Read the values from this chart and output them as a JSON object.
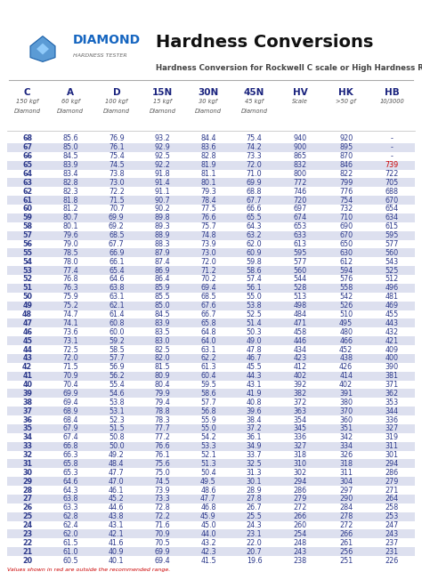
{
  "title": "Hardness Conversions",
  "subtitle": "Hardness Conversion for Rockwell C scale or High Hardness Range",
  "logo_text": "DIAMOND",
  "logo_subtext": "HARDNESS TESTER",
  "col_headers": [
    "C",
    "A",
    "D",
    "15N",
    "30N",
    "45N",
    "HV",
    "HK",
    "HB"
  ],
  "col_subheaders_line1": [
    "150 kgf",
    "60 kgf",
    "100 kgf",
    "15 kgf",
    "30 kgf",
    "45 kgf",
    "Scale",
    ">50 gf",
    "10/3000"
  ],
  "col_subheaders_line2": [
    "Diamond",
    "Diamond",
    "Diamond",
    "Diamond",
    "Diamond",
    "Diamond",
    "",
    "",
    ""
  ],
  "red_hb_threshold": 739,
  "data": [
    [
      68,
      85.6,
      76.9,
      93.2,
      84.4,
      75.4,
      940,
      920,
      "-"
    ],
    [
      67,
      85.0,
      76.1,
      92.9,
      83.6,
      74.2,
      900,
      895,
      "-"
    ],
    [
      66,
      84.5,
      75.4,
      92.5,
      82.8,
      73.3,
      865,
      870,
      "-"
    ],
    [
      65,
      83.9,
      74.5,
      92.2,
      81.9,
      72.0,
      832,
      846,
      "739"
    ],
    [
      64,
      83.4,
      73.8,
      91.8,
      81.1,
      71.0,
      800,
      822,
      "722"
    ],
    [
      63,
      82.8,
      73.0,
      91.4,
      80.1,
      69.9,
      772,
      799,
      "705"
    ],
    [
      62,
      82.3,
      72.2,
      91.1,
      79.3,
      68.8,
      746,
      776,
      "688"
    ],
    [
      61,
      81.8,
      71.5,
      90.7,
      78.4,
      67.7,
      720,
      754,
      "670"
    ],
    [
      60,
      81.2,
      70.7,
      90.2,
      77.5,
      66.6,
      697,
      732,
      "654"
    ],
    [
      59,
      80.7,
      69.9,
      89.8,
      76.6,
      65.5,
      674,
      710,
      "634"
    ],
    [
      58,
      80.1,
      69.2,
      89.3,
      75.7,
      64.3,
      653,
      690,
      "615"
    ],
    [
      57,
      79.6,
      68.5,
      88.9,
      74.8,
      63.2,
      633,
      670,
      "595"
    ],
    [
      56,
      79.0,
      67.7,
      88.3,
      73.9,
      62.0,
      613,
      650,
      "577"
    ],
    [
      55,
      78.5,
      66.9,
      87.9,
      73.0,
      60.9,
      595,
      630,
      "560"
    ],
    [
      54,
      78.0,
      66.1,
      87.4,
      72.0,
      59.8,
      577,
      612,
      "543"
    ],
    [
      53,
      77.4,
      65.4,
      86.9,
      71.2,
      58.6,
      560,
      594,
      "525"
    ],
    [
      52,
      76.8,
      64.6,
      86.4,
      70.2,
      57.4,
      544,
      576,
      "512"
    ],
    [
      51,
      76.3,
      63.8,
      85.9,
      69.4,
      56.1,
      528,
      558,
      "496"
    ],
    [
      50,
      75.9,
      63.1,
      85.5,
      68.5,
      55.0,
      513,
      542,
      "481"
    ],
    [
      49,
      75.2,
      62.1,
      85.0,
      67.6,
      53.8,
      498,
      526,
      "469"
    ],
    [
      48,
      74.7,
      61.4,
      84.5,
      66.7,
      52.5,
      484,
      510,
      "455"
    ],
    [
      47,
      74.1,
      60.8,
      83.9,
      65.8,
      51.4,
      471,
      495,
      "443"
    ],
    [
      46,
      73.6,
      60.0,
      83.5,
      64.8,
      50.3,
      458,
      480,
      "432"
    ],
    [
      45,
      73.1,
      59.2,
      83.0,
      64.0,
      49.0,
      446,
      466,
      "421"
    ],
    [
      44,
      72.5,
      58.5,
      82.5,
      63.1,
      47.8,
      434,
      452,
      "409"
    ],
    [
      43,
      72.0,
      57.7,
      82.0,
      62.2,
      46.7,
      423,
      438,
      "400"
    ],
    [
      42,
      71.5,
      56.9,
      81.5,
      61.3,
      45.5,
      412,
      426,
      "390"
    ],
    [
      41,
      70.9,
      56.2,
      80.9,
      60.4,
      44.3,
      402,
      414,
      "381"
    ],
    [
      40,
      70.4,
      55.4,
      80.4,
      59.5,
      43.1,
      392,
      402,
      "371"
    ],
    [
      39,
      69.9,
      54.6,
      79.9,
      58.6,
      41.9,
      382,
      391,
      "362"
    ],
    [
      38,
      69.4,
      53.8,
      79.4,
      57.7,
      40.8,
      372,
      380,
      "353"
    ],
    [
      37,
      68.9,
      53.1,
      78.8,
      56.8,
      39.6,
      363,
      370,
      "344"
    ],
    [
      36,
      68.4,
      52.3,
      78.3,
      55.9,
      38.4,
      354,
      360,
      "336"
    ],
    [
      35,
      67.9,
      51.5,
      77.7,
      55.0,
      37.2,
      345,
      351,
      "327"
    ],
    [
      34,
      67.4,
      50.8,
      77.2,
      54.2,
      36.1,
      336,
      342,
      "319"
    ],
    [
      33,
      66.8,
      50.0,
      76.6,
      53.3,
      34.9,
      327,
      334,
      "311"
    ],
    [
      32,
      66.3,
      49.2,
      76.1,
      52.1,
      33.7,
      318,
      326,
      "301"
    ],
    [
      31,
      65.8,
      48.4,
      75.6,
      51.3,
      32.5,
      310,
      318,
      "294"
    ],
    [
      30,
      65.3,
      47.7,
      75.0,
      50.4,
      31.3,
      302,
      311,
      "286"
    ],
    [
      29,
      64.6,
      47.0,
      74.5,
      49.5,
      30.1,
      294,
      304,
      "279"
    ],
    [
      28,
      64.3,
      46.1,
      73.9,
      48.6,
      28.9,
      286,
      297,
      "271"
    ],
    [
      27,
      63.8,
      45.2,
      73.3,
      47.7,
      27.8,
      279,
      290,
      "264"
    ],
    [
      26,
      63.3,
      44.6,
      72.8,
      46.8,
      26.7,
      272,
      284,
      "258"
    ],
    [
      25,
      62.8,
      43.8,
      72.2,
      45.9,
      25.5,
      266,
      278,
      "253"
    ],
    [
      24,
      62.4,
      43.1,
      71.6,
      45.0,
      24.3,
      260,
      272,
      "247"
    ],
    [
      23,
      62.0,
      42.1,
      70.9,
      44.0,
      23.1,
      254,
      266,
      "243"
    ],
    [
      22,
      61.5,
      41.6,
      70.5,
      43.2,
      22.0,
      248,
      261,
      "237"
    ],
    [
      21,
      61.0,
      40.9,
      69.9,
      42.3,
      20.7,
      243,
      256,
      "231"
    ],
    [
      20,
      60.5,
      40.1,
      69.4,
      41.5,
      19.6,
      238,
      251,
      "226"
    ]
  ],
  "alt_rows_color": "#dde0ef",
  "normal_rows_color": "#ffffff",
  "red_color": "#cc0000",
  "text_color": "#2d3a8c",
  "header_color": "#1a237e",
  "logo_color": "#1565C0",
  "diamond_fill": "#5b9bd5",
  "diamond_edge": "#1a5fa8"
}
